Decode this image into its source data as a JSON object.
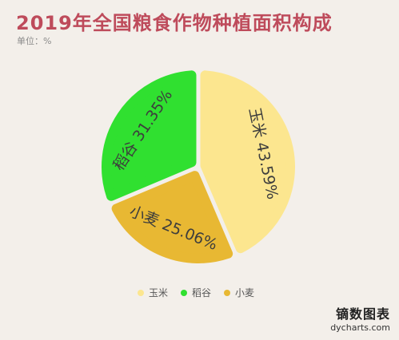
{
  "chart_data": {
    "type": "pie",
    "title": "2019年全国粮食作物种植面积构成",
    "subtitle": "单位：%",
    "value_suffix": "%",
    "slices": [
      {
        "name": "玉米",
        "value": 43.59,
        "color": "#fce68f"
      },
      {
        "name": "小麦",
        "value": 25.06,
        "color": "#e8b833"
      },
      {
        "name": "稻谷",
        "value": 31.35,
        "color": "#30e030"
      }
    ],
    "legend": {
      "position": "bottom",
      "items": [
        "玉米",
        "稻谷",
        "小麦"
      ]
    }
  },
  "watermark": {
    "brand": "镝数图表",
    "site": "dycharts.com"
  },
  "colors": {
    "background": "#f3efea",
    "title": "#be4b5b"
  }
}
